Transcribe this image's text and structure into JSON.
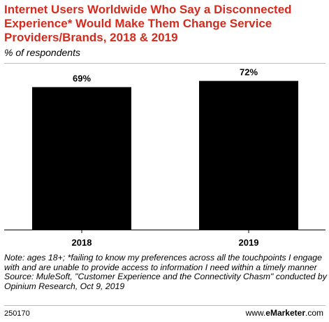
{
  "header": {
    "title": "Internet Users Worldwide Who Say a Disconnected Experience* Would Make Them Change Service Providers/Brands, 2018 & 2019",
    "subtitle": "% of respondents"
  },
  "chart_data": {
    "type": "bar",
    "categories": [
      "2018",
      "2019"
    ],
    "values": [
      69,
      72
    ],
    "data_labels": [
      "69%",
      "72%"
    ],
    "title": "Internet Users Worldwide Who Say a Disconnected Experience* Would Make Them Change Service Providers/Brands, 2018 & 2019",
    "subtitle": "% of respondents",
    "xlabel": "",
    "ylabel": "",
    "ylim": [
      0,
      100
    ],
    "grid": false,
    "bar_color": "#000000"
  },
  "footer": {
    "note": "Note: ages 18+; *failing to know my preferences across all the touchpoints I engage with and are unable to provide access to information I need within a timely manner",
    "source": "Source: MuleSoft, \"Customer Experience and the Connectivity Chasm\" conducted by Opinium Research, Oct 9, 2019",
    "id": "250170",
    "brand_prefix": "www.",
    "brand_name": "eMarketer",
    "brand_suffix": ".com"
  },
  "colors": {
    "title": "#d42b1e",
    "bar": "#000000",
    "divider": "#bdbdbd"
  }
}
